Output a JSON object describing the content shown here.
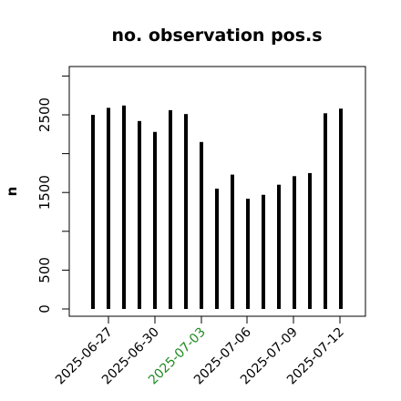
{
  "chart_data": {
    "type": "bar",
    "title": "no. observation pos.s",
    "ylabel": "n",
    "xlabel": "",
    "ylim": [
      -100,
      3100
    ],
    "yticks": [
      0,
      500,
      1500,
      2500
    ],
    "x": [
      "2025-06-26",
      "2025-06-27",
      "2025-06-28",
      "2025-06-29",
      "2025-06-30",
      "2025-07-01",
      "2025-07-02",
      "2025-07-03",
      "2025-07-04",
      "2025-07-05",
      "2025-07-06",
      "2025-07-07",
      "2025-07-08",
      "2025-07-09",
      "2025-07-10",
      "2025-07-11",
      "2025-07-12"
    ],
    "values": [
      2500,
      2590,
      2620,
      2420,
      2280,
      2560,
      2510,
      2150,
      1550,
      1730,
      1420,
      1470,
      1600,
      1710,
      1750,
      2520,
      2580
    ],
    "xtick_labels": [
      {
        "label": "2025-06-27",
        "color": "#000000"
      },
      {
        "label": "2025-06-30",
        "color": "#000000"
      },
      {
        "label": "2025-07-03",
        "color": "#228B22"
      },
      {
        "label": "2025-07-06",
        "color": "#000000"
      },
      {
        "label": "2025-07-09",
        "color": "#000000"
      },
      {
        "label": "2025-07-12",
        "color": "#000000"
      }
    ],
    "bar_color": "#000000",
    "grid": false
  }
}
